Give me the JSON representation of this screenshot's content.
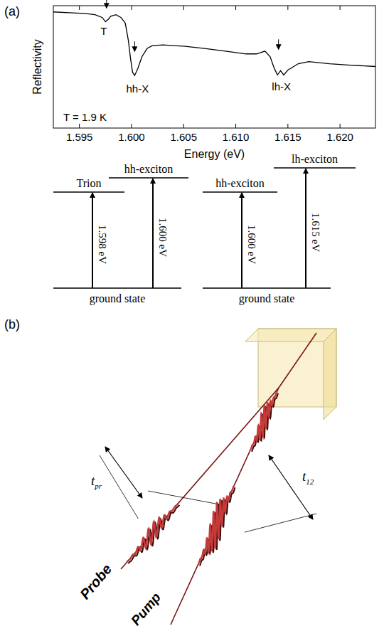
{
  "panels": [
    "(a)",
    "(b)"
  ],
  "chart_data": {
    "type": "line",
    "ylabel": "Reflectivity",
    "xlabel": "Energy (eV)",
    "x": [
      1.5925,
      1.594,
      1.5955,
      1.5965,
      1.5972,
      1.5975,
      1.5978,
      1.598,
      1.5985,
      1.599,
      1.5994,
      1.5997,
      1.5999,
      1.6001,
      1.6003,
      1.6006,
      1.601,
      1.6015,
      1.602,
      1.603,
      1.605,
      1.607,
      1.609,
      1.611,
      1.612,
      1.6128,
      1.6133,
      1.6137,
      1.614,
      1.6143,
      1.6146,
      1.615,
      1.616,
      1.617,
      1.619,
      1.621,
      1.6234
    ],
    "values": [
      0.949,
      0.943,
      0.937,
      0.926,
      0.903,
      0.869,
      0.891,
      0.914,
      0.926,
      0.903,
      0.857,
      0.714,
      0.571,
      0.457,
      0.429,
      0.486,
      0.583,
      0.651,
      0.674,
      0.68,
      0.669,
      0.651,
      0.629,
      0.606,
      0.606,
      0.629,
      0.583,
      0.486,
      0.434,
      0.469,
      0.434,
      0.474,
      0.526,
      0.543,
      0.526,
      0.514,
      0.503
    ],
    "color": "#000000",
    "xlim": [
      1.5925,
      1.6234
    ],
    "ylim": [
      0,
      1
    ],
    "xticks": [
      1.595,
      {
        "value": 1.6,
        "label": "1.600"
      },
      1.605,
      {
        "value": 1.61,
        "label": "1.610"
      },
      1.615,
      {
        "value": 1.62,
        "label": "1.620"
      }
    ],
    "tick_labels": "x",
    "annotations": [
      {
        "text": "T",
        "x": 1.5976
      },
      {
        "text": "hh-X",
        "x": 1.6003
      },
      {
        "text": "lh-X",
        "x": 1.6141
      },
      {
        "text": "T = 1.9 K"
      }
    ]
  },
  "level_diagrams": [
    {
      "ground": "ground state",
      "levels": [
        "Trion",
        "hh-exciton"
      ],
      "transitions": [
        "1.598 eV",
        "1.600 eV"
      ]
    },
    {
      "ground": "ground state",
      "levels": [
        "hh-exciton",
        "lh-exciton"
      ],
      "transitions": [
        "1.600 eV",
        "1.615 eV"
      ]
    }
  ],
  "illustration": {
    "probe": "Probe",
    "pump": "Pump",
    "t_pr": {
      "symbol": "t",
      "subscript": "pr"
    },
    "t_12": {
      "symbol": "t",
      "subscript": "12"
    }
  }
}
